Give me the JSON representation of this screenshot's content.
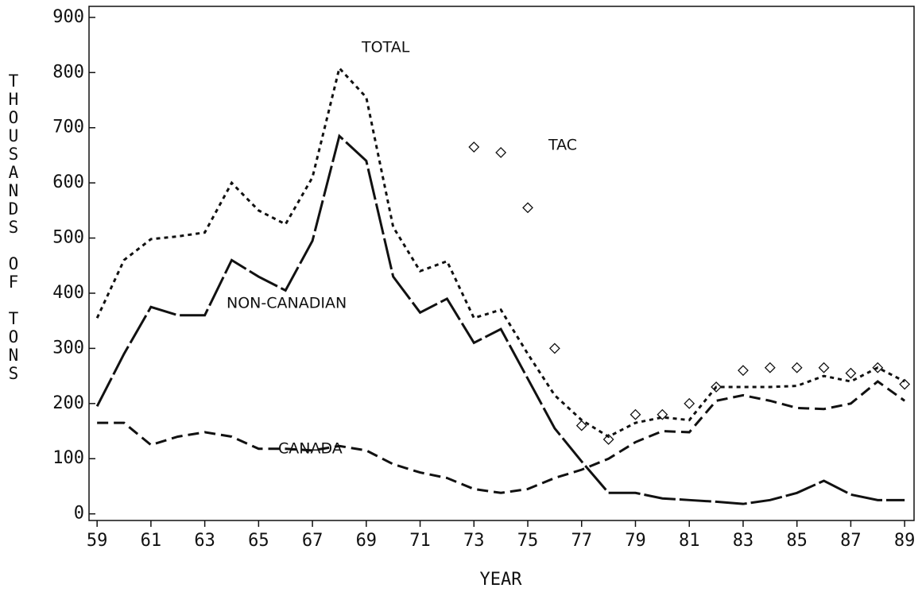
{
  "chart_data": {
    "type": "line",
    "x_label": "YEAR",
    "y_label": "THOUSANDS OF TONS",
    "x": [
      59,
      60,
      61,
      62,
      63,
      64,
      65,
      66,
      67,
      68,
      69,
      70,
      71,
      72,
      73,
      74,
      75,
      76,
      77,
      78,
      79,
      80,
      81,
      82,
      83,
      84,
      85,
      86,
      87,
      88,
      89
    ],
    "series": [
      {
        "name": "TOTAL",
        "color": "#111111",
        "style": "dotted",
        "values": [
          355,
          460,
          498,
          503,
          510,
          600,
          550,
          525,
          610,
          808,
          755,
          520,
          440,
          458,
          355,
          370,
          290,
          215,
          170,
          140,
          165,
          175,
          170,
          230,
          230,
          230,
          232,
          250,
          240,
          265,
          240
        ]
      },
      {
        "name": "NON-CANADIAN",
        "color": "#111111",
        "style": "long-dash",
        "values": [
          195,
          290,
          375,
          360,
          360,
          460,
          430,
          405,
          495,
          685,
          640,
          430,
          365,
          390,
          310,
          335,
          245,
          155,
          95,
          38,
          38,
          28,
          25,
          22,
          18,
          25,
          38,
          60,
          35,
          25,
          25
        ]
      },
      {
        "name": "CANADA",
        "color": "#111111",
        "style": "dashed",
        "values": [
          165,
          165,
          125,
          140,
          148,
          140,
          118,
          118,
          115,
          123,
          115,
          90,
          75,
          65,
          45,
          38,
          45,
          65,
          80,
          100,
          130,
          150,
          148,
          205,
          215,
          205,
          192,
          190,
          200,
          240,
          205
        ]
      },
      {
        "name": "TAC",
        "color": "#111111",
        "style": "markers",
        "values": [
          null,
          null,
          null,
          null,
          null,
          null,
          null,
          null,
          null,
          null,
          null,
          null,
          null,
          null,
          665,
          655,
          555,
          300,
          160,
          135,
          180,
          180,
          200,
          230,
          260,
          265,
          265,
          265,
          255,
          265,
          235
        ]
      }
    ],
    "xlim": [
      58.7,
      89.35
    ],
    "xticks": [
      59,
      61,
      63,
      65,
      67,
      69,
      71,
      73,
      75,
      77,
      79,
      81,
      83,
      85,
      87,
      89
    ],
    "ylim": [
      -12,
      920
    ],
    "yticks": [
      0,
      100,
      200,
      300,
      400,
      500,
      600,
      700,
      800,
      900
    ],
    "grid": false
  }
}
